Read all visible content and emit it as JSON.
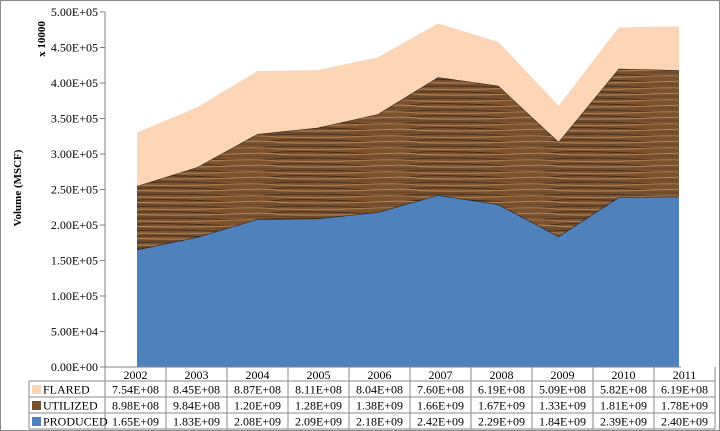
{
  "chart_data": {
    "type": "area",
    "stacked": true,
    "ylabel": "Volume (MSCF)",
    "unit_note": "x 10000",
    "ylim": [
      0,
      500000
    ],
    "yticks": [
      "0.00E+00",
      "5.00E+04",
      "1.00E+05",
      "1.50E+05",
      "2.00E+05",
      "2.50E+05",
      "3.00E+05",
      "3.50E+05",
      "4.00E+05",
      "4.50E+05",
      "5.00E+05"
    ],
    "categories": [
      "2002",
      "2003",
      "2004",
      "2005",
      "2006",
      "2007",
      "2008",
      "2009",
      "2010",
      "2011"
    ],
    "series": [
      {
        "name": "PRODUCED",
        "color": "#4f81bd",
        "values": [
          165000,
          183000,
          208000,
          209000,
          218000,
          242000,
          229000,
          184000,
          239000,
          240000
        ],
        "table": [
          "1.65E+09",
          "1.83E+09",
          "2.08E+09",
          "2.09E+09",
          "2.18E+09",
          "2.42E+09",
          "2.29E+09",
          "1.84E+09",
          "2.39E+09",
          "2.40E+09"
        ]
      },
      {
        "name": "UTILIZED",
        "color": "#7a5230",
        "values": [
          89800,
          98400,
          120000,
          128000,
          138000,
          166000,
          167000,
          133000,
          181000,
          178000
        ],
        "table": [
          "8.98E+08",
          "9.84E+08",
          "1.20E+09",
          "1.28E+09",
          "1.38E+09",
          "1.66E+09",
          "1.67E+09",
          "1.33E+09",
          "1.81E+09",
          "1.78E+09"
        ]
      },
      {
        "name": "FLARED",
        "color": "#fbd5b5",
        "values": [
          75400,
          84500,
          88700,
          81100,
          80400,
          76000,
          61900,
          50900,
          58200,
          61900
        ],
        "table": [
          "7.54E+08",
          "8.45E+08",
          "8.87E+08",
          "8.11E+08",
          "8.04E+08",
          "7.60E+08",
          "6.19E+08",
          "5.09E+08",
          "5.82E+08",
          "6.19E+08"
        ]
      }
    ],
    "grid": false,
    "legend": "data-table-left"
  }
}
